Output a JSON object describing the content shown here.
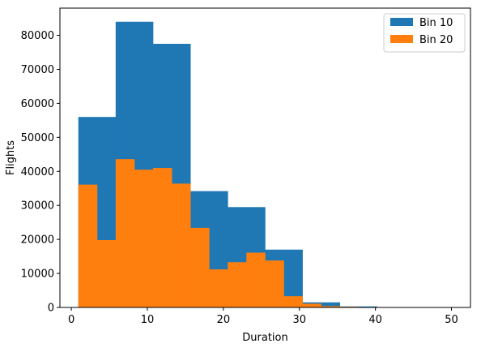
{
  "chart_data": {
    "type": "bar",
    "subtype": "histogram",
    "xlabel": "Duration",
    "ylabel": "Flights",
    "xlim": [
      -1.5,
      52.5
    ],
    "ylim": [
      0,
      88000
    ],
    "x_ticks": [
      0,
      10,
      20,
      30,
      40,
      50
    ],
    "y_ticks": [
      0,
      10000,
      20000,
      30000,
      40000,
      50000,
      60000,
      70000,
      80000
    ],
    "grid": false,
    "legend_position": "top-right",
    "series": [
      {
        "name": "Bin 10",
        "color": "#1f77b4",
        "bin_edges": [
          0.92,
          5.83,
          10.74,
          15.66,
          20.57,
          25.48,
          30.4,
          35.31,
          40.22,
          45.14,
          50.05
        ],
        "values": [
          56000,
          84000,
          77500,
          34200,
          29500,
          17000,
          1500,
          300,
          100,
          50
        ]
      },
      {
        "name": "Bin 20",
        "color": "#ff7f0e",
        "bin_edges": [
          0.92,
          3.38,
          5.83,
          8.29,
          10.74,
          13.2,
          15.66,
          18.12,
          20.57,
          23.03,
          25.48,
          27.94,
          30.4,
          32.85,
          35.31,
          37.77,
          40.22,
          42.68,
          45.14,
          47.6,
          50.05
        ],
        "values": [
          36100,
          19800,
          43600,
          40500,
          41000,
          36400,
          23400,
          11200,
          13300,
          16100,
          13800,
          3300,
          1100,
          400,
          200,
          100,
          50,
          30,
          20,
          20
        ]
      }
    ]
  }
}
